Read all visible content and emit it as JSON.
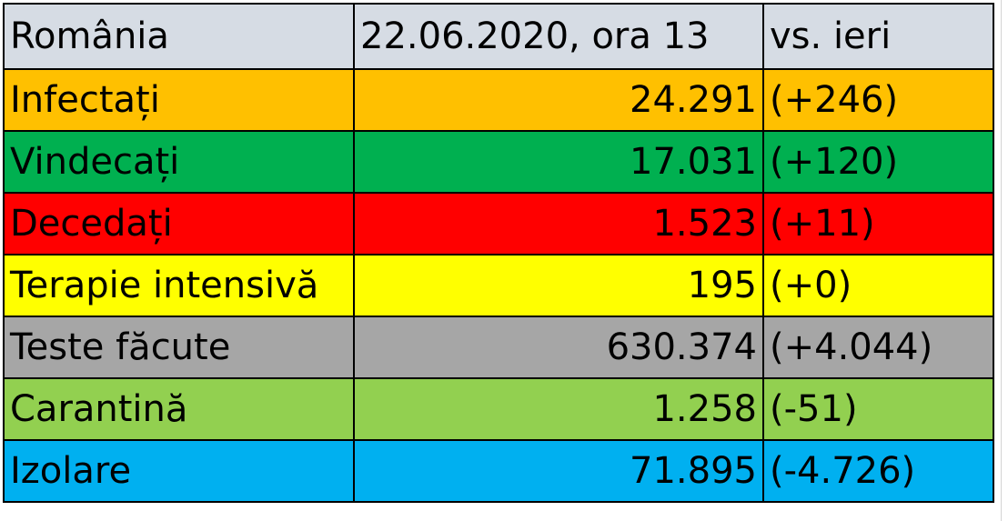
{
  "table": {
    "header": [
      "România",
      "22.06.2020, ora 13",
      "vs. ieri"
    ],
    "rows": [
      [
        "Infectați",
        "24.291",
        "(+246)"
      ],
      [
        "Vindecați",
        "17.031",
        "(+120)"
      ],
      [
        "Decedați",
        "1.523",
        "(+11)"
      ],
      [
        "Terapie intensivă",
        "195",
        "(+0)"
      ],
      [
        "Teste făcute",
        "630.374",
        "(+4.044)"
      ],
      [
        "Carantină",
        "1.258",
        "(-51)"
      ],
      [
        "Izolare",
        "71.895",
        "(-4.726)"
      ]
    ]
  }
}
